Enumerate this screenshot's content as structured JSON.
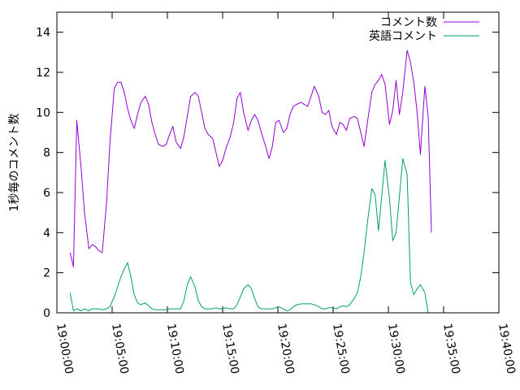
{
  "chart_data": {
    "type": "line",
    "title": "",
    "xlabel": "",
    "ylabel": "1秒毎のコメント数",
    "grid": false,
    "legend_position": "top-right",
    "xlim": [
      0,
      40
    ],
    "ylim": [
      0,
      15
    ],
    "x_ticks": [
      {
        "v": 0,
        "label": "19:00:00"
      },
      {
        "v": 5,
        "label": "19:05:00"
      },
      {
        "v": 10,
        "label": "19:10:00"
      },
      {
        "v": 15,
        "label": "19:15:00"
      },
      {
        "v": 20,
        "label": "19:20:00"
      },
      {
        "v": 25,
        "label": "19:25:00"
      },
      {
        "v": 30,
        "label": "19:30:00"
      },
      {
        "v": 35,
        "label": "19:35:00"
      },
      {
        "v": 40,
        "label": "19:40:00"
      }
    ],
    "y_ticks": [
      0,
      2,
      4,
      6,
      8,
      10,
      12,
      14
    ],
    "series": [
      {
        "name": "コメント数",
        "color": "#9400d3",
        "points": [
          [
            1.2,
            3.0
          ],
          [
            1.5,
            2.3
          ],
          [
            1.8,
            9.6
          ],
          [
            2.2,
            7.2
          ],
          [
            2.5,
            5.0
          ],
          [
            2.9,
            3.2
          ],
          [
            3.2,
            3.4
          ],
          [
            3.5,
            3.3
          ],
          [
            3.8,
            3.1
          ],
          [
            4.1,
            3.0
          ],
          [
            4.5,
            5.5
          ],
          [
            4.8,
            8.5
          ],
          [
            5.2,
            11.2
          ],
          [
            5.5,
            11.5
          ],
          [
            5.8,
            11.5
          ],
          [
            6.1,
            11.0
          ],
          [
            6.4,
            10.2
          ],
          [
            6.7,
            9.6
          ],
          [
            7.0,
            9.2
          ],
          [
            7.3,
            9.9
          ],
          [
            7.6,
            10.5
          ],
          [
            8.0,
            10.8
          ],
          [
            8.3,
            10.4
          ],
          [
            8.6,
            9.5
          ],
          [
            8.9,
            8.9
          ],
          [
            9.2,
            8.4
          ],
          [
            9.6,
            8.3
          ],
          [
            9.9,
            8.4
          ],
          [
            10.2,
            8.9
          ],
          [
            10.5,
            9.3
          ],
          [
            10.8,
            8.5
          ],
          [
            11.2,
            8.2
          ],
          [
            11.5,
            8.8
          ],
          [
            11.8,
            9.8
          ],
          [
            12.1,
            10.8
          ],
          [
            12.5,
            11.0
          ],
          [
            12.8,
            10.8
          ],
          [
            13.1,
            10.0
          ],
          [
            13.4,
            9.2
          ],
          [
            13.7,
            8.9
          ],
          [
            14.1,
            8.7
          ],
          [
            14.4,
            8.0
          ],
          [
            14.7,
            7.3
          ],
          [
            15.0,
            7.6
          ],
          [
            15.3,
            8.2
          ],
          [
            15.7,
            8.8
          ],
          [
            16.0,
            9.5
          ],
          [
            16.3,
            10.7
          ],
          [
            16.6,
            11.0
          ],
          [
            16.9,
            10.0
          ],
          [
            17.3,
            9.1
          ],
          [
            17.6,
            9.6
          ],
          [
            17.9,
            9.9
          ],
          [
            18.2,
            9.6
          ],
          [
            18.5,
            9.0
          ],
          [
            18.9,
            8.3
          ],
          [
            19.2,
            7.7
          ],
          [
            19.5,
            8.3
          ],
          [
            19.8,
            9.5
          ],
          [
            20.1,
            9.6
          ],
          [
            20.5,
            9.0
          ],
          [
            20.8,
            9.2
          ],
          [
            21.1,
            9.9
          ],
          [
            21.4,
            10.3
          ],
          [
            21.7,
            10.4
          ],
          [
            22.1,
            10.5
          ],
          [
            22.4,
            10.4
          ],
          [
            22.7,
            10.3
          ],
          [
            23.0,
            10.8
          ],
          [
            23.3,
            11.3
          ],
          [
            23.7,
            10.8
          ],
          [
            24.0,
            10.0
          ],
          [
            24.3,
            9.9
          ],
          [
            24.6,
            10.1
          ],
          [
            24.9,
            9.3
          ],
          [
            25.3,
            8.9
          ],
          [
            25.6,
            9.5
          ],
          [
            25.9,
            9.4
          ],
          [
            26.2,
            9.1
          ],
          [
            26.5,
            9.7
          ],
          [
            26.9,
            9.8
          ],
          [
            27.2,
            9.7
          ],
          [
            27.5,
            9.0
          ],
          [
            27.8,
            8.3
          ],
          [
            28.1,
            9.5
          ],
          [
            28.5,
            11.0
          ],
          [
            28.8,
            11.4
          ],
          [
            29.1,
            11.6
          ],
          [
            29.4,
            11.9
          ],
          [
            29.7,
            11.4
          ],
          [
            30.1,
            9.4
          ],
          [
            30.4,
            10.1
          ],
          [
            30.7,
            11.6
          ],
          [
            31.0,
            9.9
          ],
          [
            31.3,
            11.0
          ],
          [
            31.7,
            13.1
          ],
          [
            32.0,
            12.5
          ],
          [
            32.3,
            11.5
          ],
          [
            32.6,
            10.0
          ],
          [
            32.9,
            7.9
          ],
          [
            33.3,
            11.3
          ],
          [
            33.6,
            9.8
          ],
          [
            33.9,
            4.0
          ]
        ]
      },
      {
        "name": "英語コメント",
        "color": "#009e73",
        "points": [
          [
            1.2,
            1.0
          ],
          [
            1.5,
            0.1
          ],
          [
            1.8,
            0.2
          ],
          [
            2.2,
            0.1
          ],
          [
            2.5,
            0.2
          ],
          [
            2.9,
            0.1
          ],
          [
            3.2,
            0.2
          ],
          [
            3.5,
            0.2
          ],
          [
            3.8,
            0.2
          ],
          [
            4.1,
            0.15
          ],
          [
            4.5,
            0.2
          ],
          [
            4.8,
            0.3
          ],
          [
            5.2,
            0.8
          ],
          [
            5.5,
            1.3
          ],
          [
            5.8,
            1.8
          ],
          [
            6.1,
            2.2
          ],
          [
            6.4,
            2.5
          ],
          [
            6.7,
            1.8
          ],
          [
            7.0,
            0.9
          ],
          [
            7.3,
            0.5
          ],
          [
            7.6,
            0.4
          ],
          [
            8.0,
            0.5
          ],
          [
            8.3,
            0.35
          ],
          [
            8.6,
            0.2
          ],
          [
            8.9,
            0.15
          ],
          [
            9.2,
            0.15
          ],
          [
            9.6,
            0.15
          ],
          [
            9.9,
            0.15
          ],
          [
            10.2,
            0.2
          ],
          [
            10.5,
            0.2
          ],
          [
            10.8,
            0.2
          ],
          [
            11.2,
            0.2
          ],
          [
            11.5,
            0.6
          ],
          [
            11.8,
            1.4
          ],
          [
            12.1,
            1.8
          ],
          [
            12.5,
            1.3
          ],
          [
            12.8,
            0.6
          ],
          [
            13.1,
            0.3
          ],
          [
            13.4,
            0.2
          ],
          [
            13.7,
            0.2
          ],
          [
            14.1,
            0.2
          ],
          [
            14.4,
            0.25
          ],
          [
            14.7,
            0.2
          ],
          [
            15.0,
            0.2
          ],
          [
            15.3,
            0.25
          ],
          [
            15.7,
            0.2
          ],
          [
            16.0,
            0.2
          ],
          [
            16.3,
            0.4
          ],
          [
            16.6,
            0.8
          ],
          [
            16.9,
            1.2
          ],
          [
            17.3,
            1.4
          ],
          [
            17.6,
            1.2
          ],
          [
            17.9,
            0.7
          ],
          [
            18.2,
            0.3
          ],
          [
            18.5,
            0.2
          ],
          [
            18.9,
            0.2
          ],
          [
            19.2,
            0.2
          ],
          [
            19.5,
            0.2
          ],
          [
            19.8,
            0.25
          ],
          [
            20.1,
            0.3
          ],
          [
            20.5,
            0.2
          ],
          [
            20.8,
            0.1
          ],
          [
            21.1,
            0.15
          ],
          [
            21.4,
            0.3
          ],
          [
            21.7,
            0.4
          ],
          [
            22.1,
            0.45
          ],
          [
            22.4,
            0.45
          ],
          [
            22.7,
            0.45
          ],
          [
            23.0,
            0.45
          ],
          [
            23.3,
            0.4
          ],
          [
            23.7,
            0.3
          ],
          [
            24.0,
            0.2
          ],
          [
            24.3,
            0.2
          ],
          [
            24.6,
            0.25
          ],
          [
            24.9,
            0.25
          ],
          [
            25.3,
            0.2
          ],
          [
            25.6,
            0.3
          ],
          [
            25.9,
            0.35
          ],
          [
            26.2,
            0.3
          ],
          [
            26.5,
            0.4
          ],
          [
            26.9,
            0.7
          ],
          [
            27.2,
            1.0
          ],
          [
            27.5,
            1.8
          ],
          [
            27.8,
            3.0
          ],
          [
            28.1,
            4.5
          ],
          [
            28.5,
            6.2
          ],
          [
            28.8,
            5.9
          ],
          [
            29.1,
            4.1
          ],
          [
            29.4,
            5.8
          ],
          [
            29.7,
            7.6
          ],
          [
            30.1,
            5.7
          ],
          [
            30.4,
            3.6
          ],
          [
            30.7,
            4.0
          ],
          [
            31.0,
            5.8
          ],
          [
            31.3,
            7.7
          ],
          [
            31.7,
            6.9
          ],
          [
            32.0,
            1.5
          ],
          [
            32.3,
            0.9
          ],
          [
            32.6,
            1.2
          ],
          [
            32.9,
            1.4
          ],
          [
            33.3,
            1.0
          ],
          [
            33.6,
            0.0
          ]
        ]
      }
    ]
  }
}
